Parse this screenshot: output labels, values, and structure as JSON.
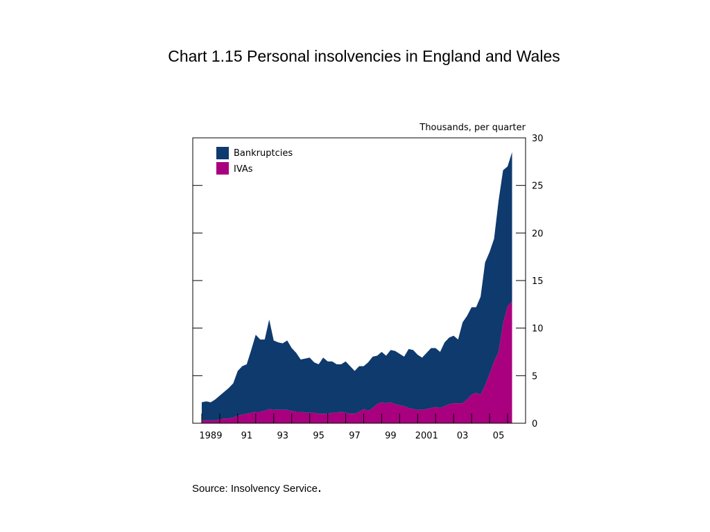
{
  "title": "Chart 1.15  Personal insolvencies in England and Wales",
  "source": "Source:  Insolvency Service",
  "source_end": ".",
  "colors": {
    "bankruptcies": "#0e3a6e",
    "ivas": "#a8007e",
    "axis": "#000000"
  },
  "chart_data": {
    "type": "area",
    "stacked": true,
    "ylabel": "Thousands, per quarter",
    "ylim": [
      0,
      30
    ],
    "yticks": [
      0,
      5,
      10,
      15,
      20,
      25,
      30
    ],
    "xlim": [
      1988.5,
      2007.0
    ],
    "xticks": [
      {
        "value": 1989,
        "label": "1989"
      },
      {
        "value": 1991,
        "label": "91"
      },
      {
        "value": 1993,
        "label": "93"
      },
      {
        "value": 1995,
        "label": "95"
      },
      {
        "value": 1997,
        "label": "97"
      },
      {
        "value": 1999,
        "label": "99"
      },
      {
        "value": 2001,
        "label": "2001"
      },
      {
        "value": 2003,
        "label": "03"
      },
      {
        "value": 2005,
        "label": "05"
      }
    ],
    "grid": false,
    "legend_position": "top-left",
    "x": [
      1989.0,
      1989.25,
      1989.5,
      1989.75,
      1990.0,
      1990.25,
      1990.5,
      1990.75,
      1991.0,
      1991.25,
      1991.5,
      1991.75,
      1992.0,
      1992.25,
      1992.5,
      1992.75,
      1993.0,
      1993.25,
      1993.5,
      1993.75,
      1994.0,
      1994.25,
      1994.5,
      1994.75,
      1995.0,
      1995.25,
      1995.5,
      1995.75,
      1996.0,
      1996.25,
      1996.5,
      1996.75,
      1997.0,
      1997.25,
      1997.5,
      1997.75,
      1998.0,
      1998.25,
      1998.5,
      1998.75,
      1999.0,
      1999.25,
      1999.5,
      1999.75,
      2000.0,
      2000.25,
      2000.5,
      2000.75,
      2001.0,
      2001.25,
      2001.5,
      2001.75,
      2002.0,
      2002.25,
      2002.5,
      2002.75,
      2003.0,
      2003.25,
      2003.5,
      2003.75,
      2004.0,
      2004.25,
      2004.5,
      2004.75,
      2005.0,
      2005.25,
      2005.5,
      2005.75,
      2006.0,
      2006.25
    ],
    "series": [
      {
        "name": "IVAs",
        "values": [
          0.3,
          0.3,
          0.3,
          0.3,
          0.4,
          0.5,
          0.5,
          0.6,
          0.8,
          0.9,
          1.0,
          1.1,
          1.2,
          1.2,
          1.3,
          1.5,
          1.4,
          1.4,
          1.4,
          1.4,
          1.3,
          1.2,
          1.2,
          1.1,
          1.1,
          1.1,
          1.0,
          1.0,
          1.0,
          1.1,
          1.1,
          1.2,
          1.1,
          1.0,
          1.0,
          1.2,
          1.5,
          1.3,
          1.6,
          2.0,
          2.2,
          2.1,
          2.2,
          2.0,
          1.9,
          1.8,
          1.6,
          1.5,
          1.4,
          1.4,
          1.5,
          1.6,
          1.7,
          1.6,
          1.8,
          2.0,
          2.1,
          2.1,
          2.1,
          2.5,
          3.0,
          3.2,
          3.0,
          4.0,
          5.2,
          6.5,
          7.5,
          10.5,
          12.3,
          12.8
        ]
      },
      {
        "name": "Bankruptcies",
        "values": [
          1.9,
          2.0,
          1.9,
          2.2,
          2.5,
          2.8,
          3.2,
          3.6,
          4.7,
          5.1,
          5.2,
          6.6,
          8.1,
          7.6,
          7.5,
          9.4,
          7.3,
          7.1,
          7.0,
          7.3,
          6.6,
          6.2,
          5.5,
          5.7,
          5.8,
          5.3,
          5.2,
          5.9,
          5.5,
          5.4,
          5.1,
          5.0,
          5.4,
          5.0,
          4.5,
          4.8,
          4.5,
          5.1,
          5.4,
          5.1,
          5.3,
          5.0,
          5.5,
          5.6,
          5.4,
          5.2,
          6.2,
          6.2,
          5.8,
          5.5,
          5.9,
          6.3,
          6.2,
          5.9,
          6.7,
          7.0,
          7.1,
          6.7,
          8.5,
          8.8,
          9.2,
          9.0,
          10.3,
          12.9,
          12.8,
          12.9,
          15.9,
          16.1,
          14.7,
          15.7
        ]
      }
    ]
  }
}
